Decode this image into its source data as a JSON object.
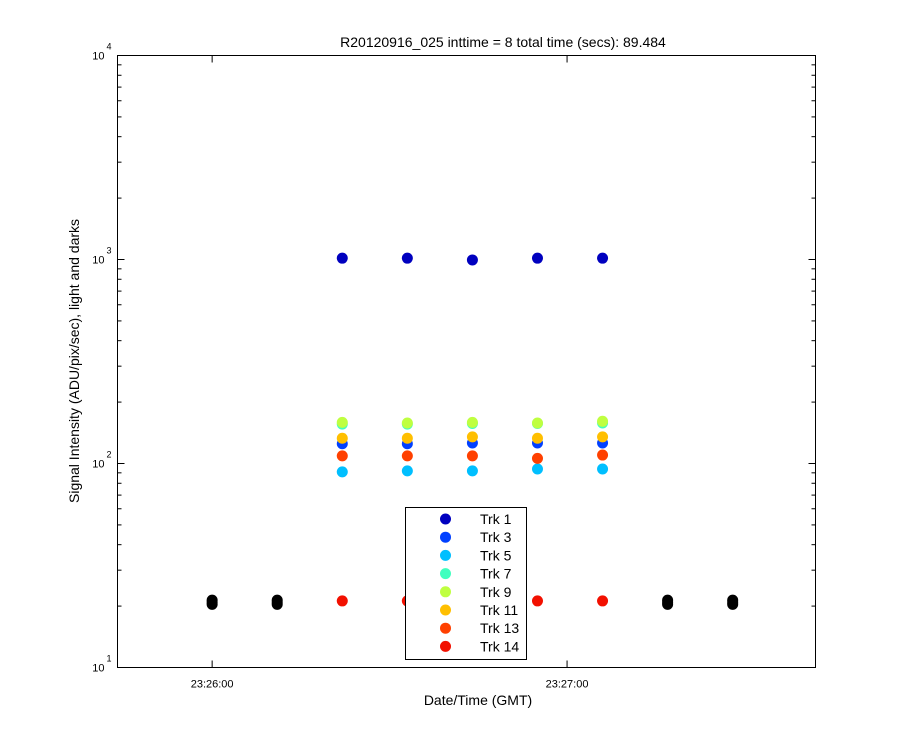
{
  "chart_data": {
    "type": "scatter",
    "title": "R20120916_025 inttime = 8 total time (secs): 89.484",
    "xlabel": "Date/Time (GMT)",
    "ylabel": "Signal Intensity (ADU/pix/sec), light and darks",
    "x_scale": "time",
    "y_scale": "log",
    "xlim": [
      "23:25:44",
      "23:27:42"
    ],
    "ylim": [
      10,
      10000
    ],
    "x_ticks": [
      "23:26:00",
      "23:27:00"
    ],
    "y_ticks": [
      {
        "base": "10",
        "exp": "1"
      },
      {
        "base": "10",
        "exp": "2"
      },
      {
        "base": "10",
        "exp": "3"
      },
      {
        "base": "10",
        "exp": "4"
      }
    ],
    "grid": false,
    "legend": {
      "position": "lower-center",
      "entries": [
        "Trk 1",
        "Trk 3",
        "Trk 5",
        "Trk 7",
        "Trk 9",
        "Trk 11",
        "Trk 13",
        "Trk 14"
      ]
    },
    "series": [
      {
        "name": "Trk 1",
        "color": "#0000BF",
        "x": [
          "23:26:22",
          "23:26:33",
          "23:26:44",
          "23:26:55",
          "23:27:06"
        ],
        "y": [
          1015,
          1015,
          995,
          1015,
          1015
        ]
      },
      {
        "name": "Trk 3",
        "color": "#0040FF",
        "x": [
          "23:26:22",
          "23:26:33",
          "23:26:44",
          "23:26:55",
          "23:27:06"
        ],
        "y": [
          125,
          125,
          126,
          126,
          126
        ]
      },
      {
        "name": "Trk 5",
        "color": "#00BFFF",
        "x": [
          "23:26:22",
          "23:26:33",
          "23:26:44",
          "23:26:55",
          "23:27:06"
        ],
        "y": [
          91,
          92,
          92,
          94,
          94
        ]
      },
      {
        "name": "Trk 7",
        "color": "#40FFBF",
        "x": [
          "23:26:22",
          "23:26:33",
          "23:26:44",
          "23:26:55",
          "23:27:06"
        ],
        "y": [
          156,
          156,
          157,
          157,
          158
        ]
      },
      {
        "name": "Trk 9",
        "color": "#BFFF40",
        "x": [
          "23:26:22",
          "23:26:33",
          "23:26:44",
          "23:26:55",
          "23:27:06"
        ],
        "y": [
          159,
          158,
          159,
          158,
          161
        ]
      },
      {
        "name": "Trk 11",
        "color": "#FFBF00",
        "x": [
          "23:26:22",
          "23:26:33",
          "23:26:44",
          "23:26:55",
          "23:27:06"
        ],
        "y": [
          133,
          133,
          135,
          133,
          135
        ]
      },
      {
        "name": "Trk 13",
        "color": "#FF4000",
        "x": [
          "23:26:22",
          "23:26:33",
          "23:26:44",
          "23:26:55",
          "23:27:06"
        ],
        "y": [
          109,
          109,
          109,
          106,
          110
        ]
      },
      {
        "name": "Trk 14",
        "color": "#F21000",
        "x": [
          "23:26:22",
          "23:26:33",
          "23:26:44",
          "23:26:55",
          "23:27:06"
        ],
        "y": [
          21.2,
          21.2,
          21.2,
          21.2,
          21.2
        ]
      },
      {
        "name": "",
        "color": "#000000",
        "x": [
          "23:26:00",
          "23:26:00",
          "23:26:00",
          "23:26:11",
          "23:26:11",
          "23:26:11",
          "23:27:17",
          "23:27:17",
          "23:27:17",
          "23:27:28",
          "23:27:28",
          "23:27:28"
        ],
        "y": [
          20.4,
          20.9,
          21.4,
          20.4,
          20.9,
          21.4,
          20.4,
          20.9,
          21.4,
          20.4,
          20.9,
          21.4
        ]
      }
    ]
  }
}
